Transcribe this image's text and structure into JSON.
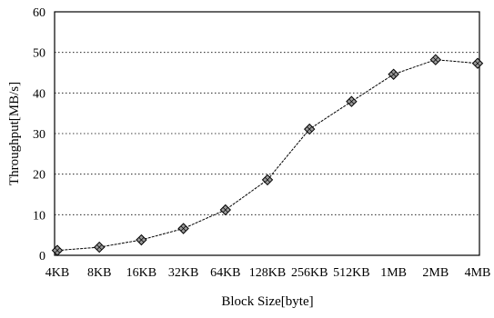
{
  "chart_data": {
    "type": "line",
    "title": "",
    "xlabel": "Block Size[byte]",
    "ylabel": "Throughput[MB/s]",
    "categories": [
      "4KB",
      "8KB",
      "16KB",
      "32KB",
      "64KB",
      "128KB",
      "256KB",
      "512KB",
      "1MB",
      "2MB",
      "4MB"
    ],
    "ylim": [
      0,
      60
    ],
    "yticks": [
      0,
      10,
      20,
      30,
      40,
      50,
      60
    ],
    "grid": "horizontal-dotted",
    "legend": "none",
    "series": [
      {
        "values": [
          1.2,
          2.0,
          3.8,
          6.6,
          11.2,
          18.6,
          31.1,
          37.9,
          44.6,
          48.2,
          47.3
        ],
        "color": "#000000",
        "marker": "diamond"
      }
    ]
  }
}
